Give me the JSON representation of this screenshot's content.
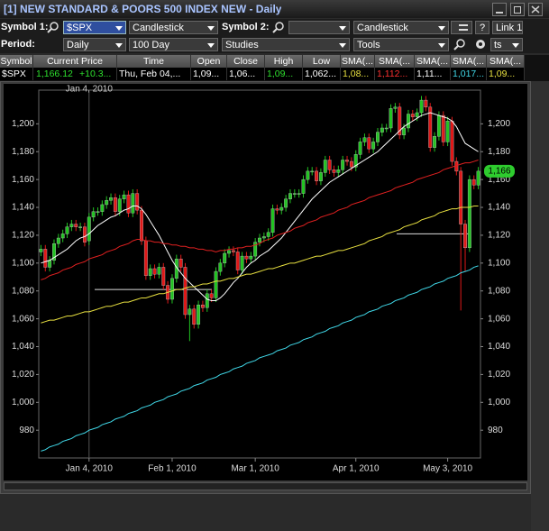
{
  "window": {
    "title": "[1] NEW STANDARD & POORS 500 INDEX NEW - Daily"
  },
  "toolbar": {
    "symbol1_label": "Symbol 1:",
    "symbol1": "$SPX",
    "chart_type1": "Candlestick",
    "symbol2_label": "Symbol 2:",
    "chart_type2": "Candlestick",
    "help": "?",
    "link": "Link 1",
    "period_label": "Period:",
    "period": "Daily",
    "range": "100 Day",
    "studies": "Studies",
    "tools": "Tools",
    "extra": "ts"
  },
  "quote_table": {
    "headers": [
      "Symbol",
      "Current Price",
      "Time",
      "Open",
      "Close",
      "High",
      "Low",
      "SMA(...",
      "SMA(...",
      "SMA(...",
      "SMA(...",
      "SMA(..."
    ],
    "row": [
      "$SPX",
      "1,166.12",
      "Thu, Feb 04,...",
      "1,09...",
      "1,06...",
      "1,09...",
      "1,062...",
      "1,08...",
      "1,112...",
      "1,11...",
      "1,017...",
      "1,09..."
    ],
    "change": "+10.3..."
  },
  "chart_data": {
    "type": "candlestick",
    "categories": [
      null,
      null,
      null,
      null,
      null,
      null,
      null,
      null,
      null,
      null,
      null,
      "Jan 4, 2010",
      null,
      null,
      null,
      null,
      null,
      null,
      null,
      null,
      null,
      null,
      null,
      null,
      null,
      null,
      null,
      null,
      null,
      null,
      "Feb 1, 2010",
      null,
      null,
      null,
      null,
      null,
      null,
      null,
      null,
      null,
      null,
      null,
      null,
      null,
      null,
      null,
      null,
      null,
      null,
      "Mar 1, 2010",
      null,
      null,
      null,
      null,
      null,
      null,
      null,
      null,
      null,
      null,
      null,
      null,
      null,
      null,
      null,
      null,
      null,
      null,
      null,
      null,
      null,
      null,
      "Apr 1, 2010",
      null,
      null,
      null,
      null,
      null,
      null,
      null,
      null,
      null,
      null,
      null,
      null,
      null,
      null,
      null,
      null,
      null,
      null,
      null,
      null,
      "May 3, 2010",
      null,
      null,
      null,
      null,
      null,
      null,
      null
    ],
    "open": [
      1108,
      1110,
      1097,
      1102,
      1114,
      1118,
      1121,
      1126,
      1128,
      1126,
      1126,
      1116,
      1133,
      1137,
      1137,
      1142,
      1145,
      1147,
      1137,
      1146,
      1149,
      1136,
      1150,
      1138,
      1116,
      1091,
      1096,
      1092,
      1097,
      1084,
      1074,
      1089,
      1103,
      1097,
      1063,
      1067,
      1056,
      1070,
      1068,
      1078,
      1075,
      1094,
      1100,
      1107,
      1109,
      1108,
      1095,
      1105,
      1103,
      1105,
      1115,
      1118,
      1119,
      1122,
      1139,
      1138,
      1140,
      1146,
      1150,
      1150,
      1150,
      1160,
      1166,
      1166,
      1159,
      1165,
      1174,
      1167,
      1165,
      1167,
      1174,
      1173,
      1169,
      1178,
      1187,
      1190,
      1182,
      1187,
      1194,
      1197,
      1197,
      1211,
      1212,
      1192,
      1197,
      1207,
      1205,
      1208,
      1217,
      1212,
      1183,
      1191,
      1206,
      1187,
      1202,
      1173,
      1166,
      1128,
      1111,
      1160,
      1156
    ],
    "high": [
      1113,
      1113,
      1105,
      1117,
      1121,
      1124,
      1129,
      1131,
      1131,
      1129,
      1129,
      1136,
      1140,
      1140,
      1145,
      1148,
      1150,
      1150,
      1149,
      1152,
      1152,
      1153,
      1153,
      1141,
      1119,
      1099,
      1099,
      1100,
      1100,
      1087,
      1092,
      1106,
      1106,
      1100,
      1070,
      1070,
      1073,
      1073,
      1081,
      1081,
      1097,
      1103,
      1110,
      1112,
      1112,
      1111,
      1108,
      1108,
      1108,
      1118,
      1121,
      1122,
      1125,
      1142,
      1142,
      1143,
      1149,
      1153,
      1153,
      1153,
      1163,
      1169,
      1169,
      1169,
      1168,
      1177,
      1177,
      1170,
      1170,
      1177,
      1177,
      1176,
      1181,
      1190,
      1193,
      1193,
      1190,
      1197,
      1200,
      1200,
      1214,
      1215,
      1215,
      1200,
      1210,
      1210,
      1211,
      1220,
      1220,
      1215,
      1194,
      1209,
      1209,
      1205,
      1205,
      1176,
      1169,
      1131,
      1163,
      1163,
      1169
    ],
    "low": [
      1105,
      1094,
      1094,
      1099,
      1111,
      1115,
      1118,
      1123,
      1123,
      1123,
      1112,
      1113,
      1130,
      1134,
      1134,
      1139,
      1142,
      1134,
      1134,
      1143,
      1133,
      1133,
      1135,
      1113,
      1088,
      1088,
      1089,
      1089,
      1081,
      1071,
      1071,
      1086,
      1094,
      1060,
      1044,
      1053,
      1053,
      1065,
      1065,
      1072,
      1072,
      1091,
      1097,
      1104,
      1105,
      1092,
      1092,
      1100,
      1100,
      1102,
      1112,
      1115,
      1116,
      1119,
      1135,
      1135,
      1137,
      1143,
      1147,
      1147,
      1147,
      1157,
      1163,
      1156,
      1156,
      1162,
      1164,
      1162,
      1162,
      1164,
      1170,
      1166,
      1166,
      1175,
      1184,
      1179,
      1179,
      1184,
      1191,
      1194,
      1194,
      1208,
      1189,
      1189,
      1194,
      1202,
      1202,
      1205,
      1209,
      1180,
      1180,
      1188,
      1184,
      1184,
      1170,
      1163,
      1066,
      1094,
      1108,
      1153,
      1153
    ],
    "close": [
      1110,
      1097,
      1102,
      1114,
      1118,
      1121,
      1126,
      1128,
      1126,
      1126,
      1115,
      1133,
      1137,
      1137,
      1142,
      1145,
      1147,
      1137,
      1146,
      1149,
      1136,
      1150,
      1138,
      1116,
      1091,
      1096,
      1092,
      1097,
      1084,
      1074,
      1089,
      1103,
      1097,
      1063,
      1067,
      1056,
      1070,
      1068,
      1078,
      1075,
      1094,
      1100,
      1107,
      1109,
      1108,
      1095,
      1105,
      1103,
      1105,
      1115,
      1118,
      1119,
      1122,
      1139,
      1138,
      1140,
      1146,
      1150,
      1150,
      1150,
      1160,
      1166,
      1166,
      1159,
      1165,
      1174,
      1167,
      1165,
      1167,
      1174,
      1173,
      1169,
      1178,
      1187,
      1190,
      1182,
      1187,
      1194,
      1197,
      1197,
      1211,
      1212,
      1192,
      1197,
      1207,
      1205,
      1208,
      1217,
      1212,
      1183,
      1191,
      1206,
      1187,
      1202,
      1173,
      1166,
      1128,
      1111,
      1160,
      1156,
      1166
    ],
    "up_color": "#22c422",
    "down_color": "#e01818",
    "series": [
      {
        "color": "#ffffff",
        "values": [
          1100,
          1101,
          1102,
          1104,
          1106,
          1108,
          1110,
          1113,
          1116,
          1118,
          1119,
          1121,
          1124,
          1127,
          1129,
          1131,
          1133,
          1134,
          1136,
          1138,
          1139,
          1141,
          1141,
          1139,
          1135,
          1130,
          1125,
          1120,
          1114,
          1108,
          1102,
          1097,
          1093,
          1089,
          1086,
          1083,
          1080,
          1077,
          1074,
          1073,
          1073,
          1075,
          1078,
          1082,
          1086,
          1089,
          1093,
          1097,
          1100,
          1102,
          1105,
          1107,
          1109,
          1112,
          1115,
          1118,
          1122,
          1126,
          1130,
          1134,
          1138,
          1142,
          1146,
          1149,
          1152,
          1155,
          1158,
          1160,
          1162,
          1164,
          1166,
          1168,
          1170,
          1172,
          1174,
          1176,
          1178,
          1180,
          1183,
          1186,
          1189,
          1192,
          1195,
          1198,
          1200,
          1202,
          1204,
          1206,
          1207,
          1208,
          1207,
          1206,
          1205,
          1204,
          1202,
          1198,
          1192,
          1186,
          1184,
          1182,
          1180
        ]
      },
      {
        "color": "#e02020",
        "values": [
          1088,
          1089,
          1091,
          1092,
          1093,
          1095,
          1096,
          1097,
          1099,
          1100,
          1101,
          1103,
          1104,
          1105,
          1106,
          1108,
          1109,
          1110,
          1112,
          1113,
          1114,
          1116,
          1117,
          1117,
          1116,
          1116,
          1115,
          1115,
          1114,
          1114,
          1113,
          1113,
          1112,
          1112,
          1111,
          1111,
          1110,
          1110,
          1109,
          1109,
          1108,
          1109,
          1109,
          1110,
          1110,
          1111,
          1111,
          1112,
          1112,
          1113,
          1114,
          1116,
          1117,
          1118,
          1120,
          1121,
          1122,
          1123,
          1125,
          1126,
          1127,
          1129,
          1130,
          1131,
          1133,
          1134,
          1135,
          1136,
          1138,
          1139,
          1140,
          1142,
          1143,
          1144,
          1145,
          1147,
          1148,
          1149,
          1150,
          1151,
          1152,
          1154,
          1155,
          1156,
          1157,
          1158,
          1160,
          1161,
          1162,
          1163,
          1164,
          1165,
          1167,
          1168,
          1169,
          1170,
          1171,
          1172,
          1172,
          1173,
          1174
        ]
      },
      {
        "color": "#e8e040",
        "values": [
          1057,
          1058,
          1059,
          1059,
          1060,
          1061,
          1062,
          1062,
          1063,
          1064,
          1065,
          1065,
          1066,
          1067,
          1068,
          1069,
          1069,
          1070,
          1071,
          1072,
          1072,
          1073,
          1074,
          1075,
          1075,
          1076,
          1077,
          1078,
          1078,
          1079,
          1080,
          1081,
          1081,
          1082,
          1083,
          1083,
          1084,
          1085,
          1085,
          1086,
          1087,
          1087,
          1088,
          1089,
          1089,
          1090,
          1091,
          1092,
          1092,
          1093,
          1094,
          1095,
          1096,
          1096,
          1097,
          1098,
          1099,
          1100,
          1100,
          1101,
          1102,
          1103,
          1104,
          1105,
          1105,
          1106,
          1107,
          1108,
          1109,
          1109,
          1110,
          1111,
          1112,
          1113,
          1114,
          1116,
          1117,
          1118,
          1119,
          1121,
          1122,
          1123,
          1124,
          1126,
          1127,
          1128,
          1129,
          1131,
          1132,
          1133,
          1134,
          1136,
          1137,
          1138,
          1139,
          1139,
          1140,
          1140,
          1140,
          1141,
          1141
        ]
      },
      {
        "color": "#40d8e8",
        "values": [
          965,
          966,
          968,
          969,
          970,
          972,
          973,
          974,
          976,
          977,
          978,
          980,
          981,
          982,
          984,
          985,
          986,
          988,
          989,
          990,
          992,
          993,
          994,
          996,
          997,
          998,
          1000,
          1001,
          1002,
          1004,
          1005,
          1006,
          1008,
          1009,
          1010,
          1012,
          1013,
          1014,
          1016,
          1017,
          1018,
          1020,
          1021,
          1022,
          1024,
          1025,
          1026,
          1028,
          1029,
          1030,
          1032,
          1033,
          1034,
          1035,
          1037,
          1038,
          1039,
          1041,
          1042,
          1043,
          1045,
          1046,
          1047,
          1049,
          1050,
          1051,
          1053,
          1054,
          1055,
          1057,
          1058,
          1059,
          1061,
          1062,
          1063,
          1065,
          1066,
          1067,
          1069,
          1070,
          1071,
          1073,
          1074,
          1075,
          1077,
          1078,
          1079,
          1081,
          1082,
          1083,
          1085,
          1086,
          1087,
          1089,
          1090,
          1091,
          1093,
          1094,
          1095,
          1097,
          1098
        ]
      }
    ],
    "hlines": [
      1081,
      1121
    ],
    "crosshair": {
      "label": "Jan 4, 2010"
    },
    "last_price": {
      "value": 1166,
      "label": "1,166"
    },
    "ylim": [
      962,
      1219
    ],
    "yticks": [
      980,
      {
        "value": 1000,
        "label": "1,000"
      },
      {
        "value": 1020,
        "label": "1,020"
      },
      {
        "value": 1040,
        "label": "1,040"
      },
      {
        "value": 1060,
        "label": "1,060"
      },
      {
        "value": 1080,
        "label": "1,080"
      },
      {
        "value": 1100,
        "label": "1,100"
      },
      {
        "value": 1120,
        "label": "1,120"
      },
      {
        "value": 1140,
        "label": "1,140"
      },
      {
        "value": 1160,
        "label": "1,160"
      },
      {
        "value": 1180,
        "label": "1,180"
      },
      {
        "value": 1200,
        "label": "1,200"
      }
    ]
  }
}
